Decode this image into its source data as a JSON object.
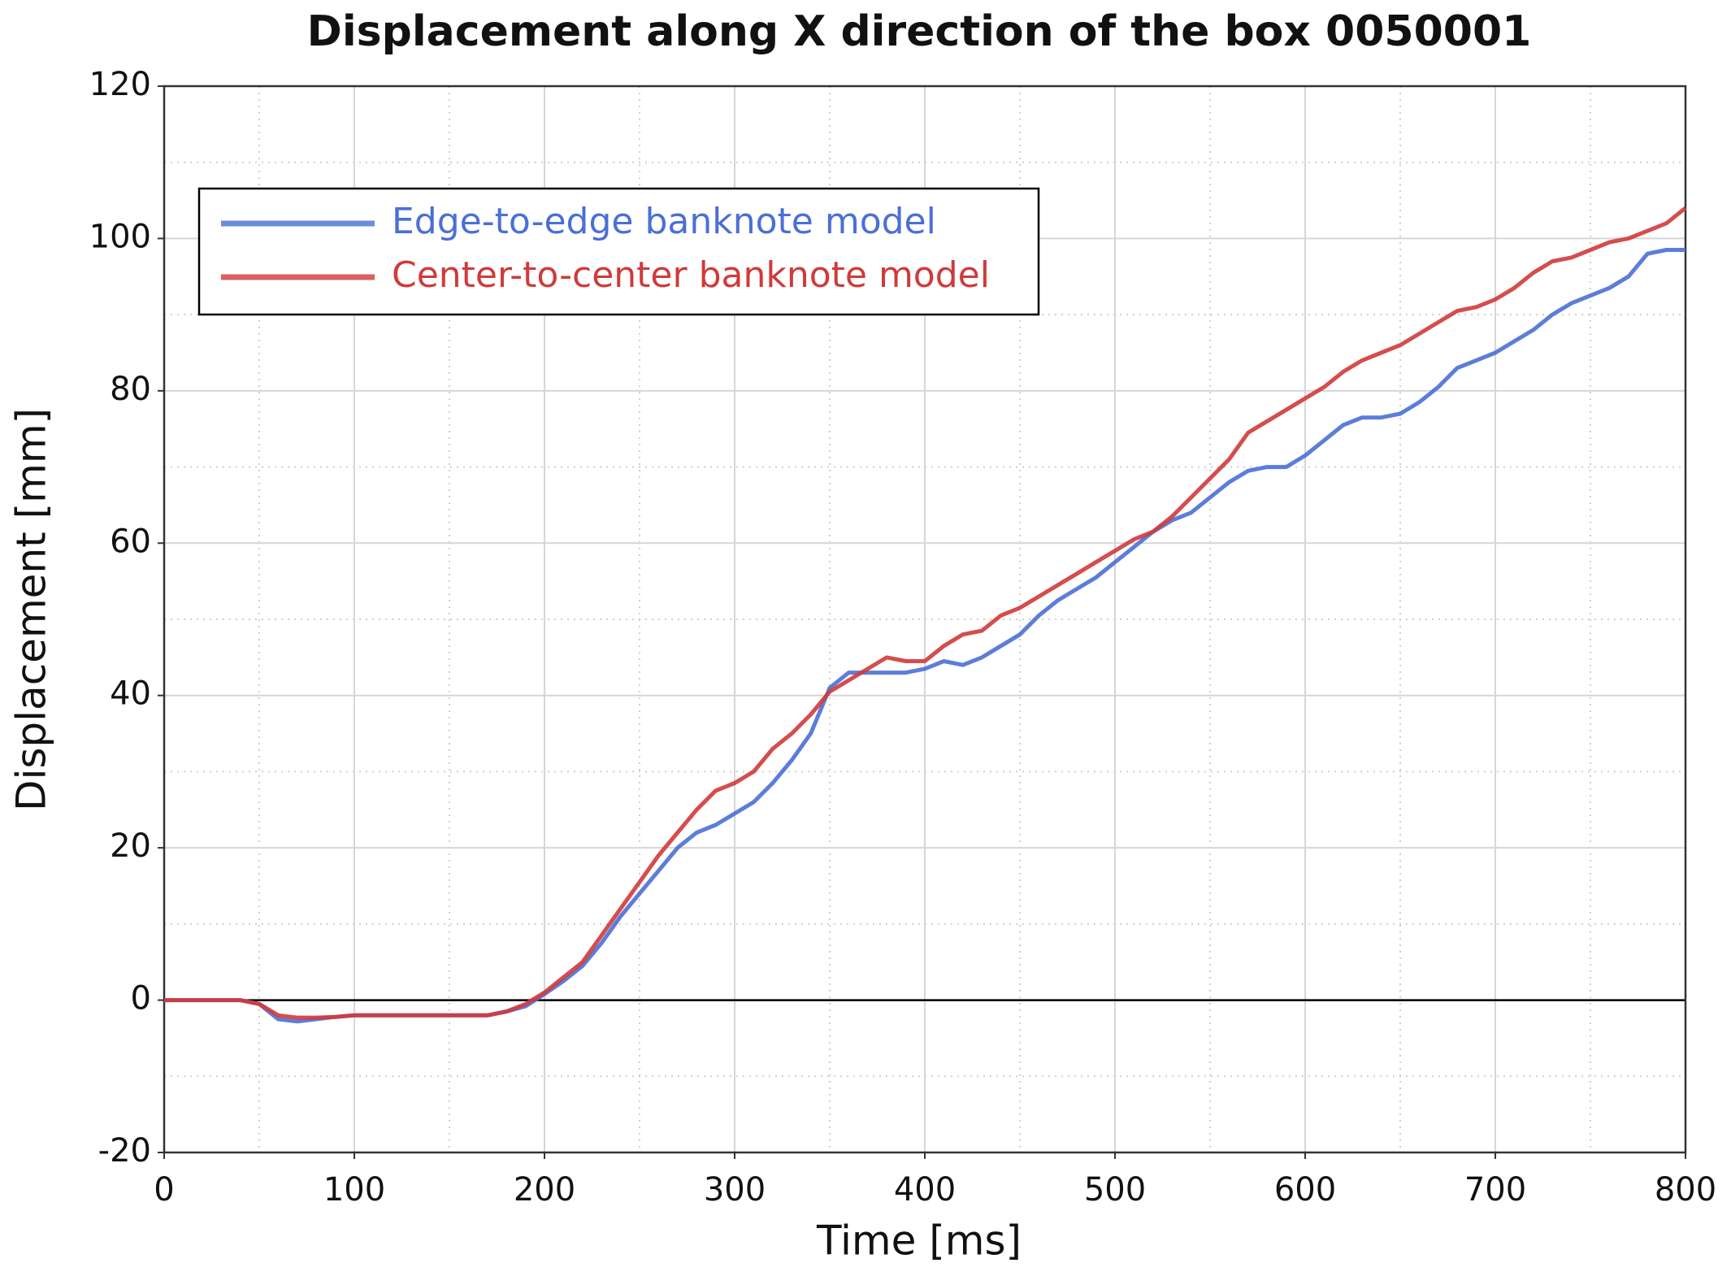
{
  "chart_data": {
    "type": "line",
    "title": "Displacement along X direction of the box 0050001",
    "x_label": "Time [ms]",
    "y_label": "Displacement [mm]",
    "x": [
      0,
      10,
      20,
      30,
      40,
      50,
      60,
      70,
      80,
      90,
      100,
      110,
      120,
      130,
      140,
      150,
      160,
      170,
      180,
      190,
      200,
      210,
      220,
      230,
      240,
      250,
      260,
      270,
      280,
      290,
      300,
      310,
      320,
      330,
      340,
      350,
      360,
      370,
      380,
      390,
      400,
      410,
      420,
      430,
      440,
      450,
      460,
      470,
      480,
      490,
      500,
      510,
      520,
      530,
      540,
      550,
      560,
      570,
      580,
      590,
      600,
      610,
      620,
      630,
      640,
      650,
      660,
      670,
      680,
      690,
      700,
      710,
      720,
      730,
      740,
      750,
      760,
      770,
      780,
      790,
      800
    ],
    "series": [
      {
        "name": "Edge-to-edge banknote model",
        "color": "#4a6fd6",
        "values": [
          0,
          0,
          0,
          0,
          0,
          -0.5,
          -2.5,
          -2.8,
          -2.5,
          -2.2,
          -2,
          -2,
          -2,
          -2,
          -2,
          -2,
          -2,
          -2,
          -1.5,
          -0.8,
          0.8,
          2.5,
          4.5,
          7.5,
          11,
          14,
          17,
          20,
          22,
          23,
          24.5,
          26,
          28.5,
          31.5,
          35,
          41,
          43,
          43,
          43,
          43,
          43.5,
          44.5,
          44,
          45,
          46.5,
          48,
          50.5,
          52.5,
          54,
          55.5,
          57.5,
          59.5,
          61.5,
          63,
          64,
          66,
          68,
          69.5,
          70,
          70,
          71.5,
          73.5,
          75.5,
          76.5,
          76.5,
          77,
          78.5,
          80.5,
          83,
          84,
          85,
          86.5,
          88,
          90,
          91.5,
          92.5,
          93.5,
          95,
          98,
          98.5,
          98.5
        ]
      },
      {
        "name": "Center-to-center banknote model",
        "color": "#d03a3a",
        "values": [
          0,
          0,
          0,
          0,
          0,
          -0.5,
          -2,
          -2.3,
          -2.3,
          -2.2,
          -2,
          -2,
          -2,
          -2,
          -2,
          -2,
          -2,
          -2,
          -1.5,
          -0.5,
          1,
          3,
          5,
          8.5,
          12,
          15.5,
          19,
          22,
          25,
          27.5,
          28.5,
          30,
          33,
          35,
          37.5,
          40.5,
          42,
          43.5,
          45,
          44.5,
          44.5,
          46.5,
          48,
          48.5,
          50.5,
          51.5,
          53,
          54.5,
          56,
          57.5,
          59,
          60.5,
          61.5,
          63.5,
          66,
          68.5,
          71,
          74.5,
          76,
          77.5,
          79,
          80.5,
          82.5,
          84,
          85,
          86,
          87.5,
          89,
          90.5,
          91,
          92,
          93.5,
          95.5,
          97,
          97.5,
          98.5,
          99.5,
          100,
          101,
          102,
          104
        ]
      }
    ],
    "xlim": [
      0,
      800
    ],
    "xticks": [
      0,
      100,
      200,
      300,
      400,
      500,
      600,
      700,
      800
    ],
    "ylim": [
      -20,
      120
    ],
    "yticks": [
      -20,
      0,
      20,
      40,
      60,
      80,
      100,
      120
    ],
    "grid": true,
    "minor_grid": true,
    "legend": "upper left"
  }
}
